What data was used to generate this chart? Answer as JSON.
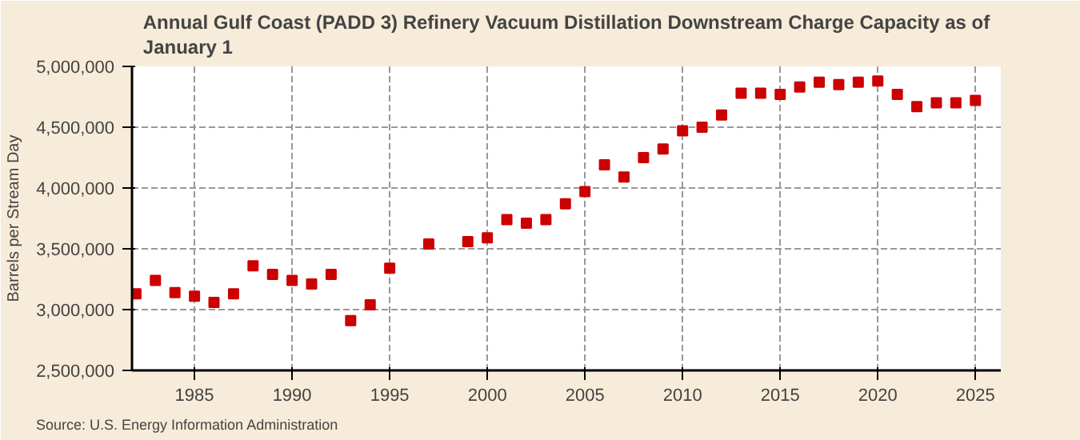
{
  "chart_data": {
    "type": "scatter",
    "title": "Annual Gulf Coast (PADD 3) Refinery Vacuum Distillation Downstream Charge Capacity as of January  1",
    "ylabel": "Barrels per Stream Day",
    "annotations": [
      "Source: U.S. Energy Information Administration"
    ],
    "x": [
      1982,
      1983,
      1984,
      1985,
      1986,
      1987,
      1988,
      1989,
      1990,
      1991,
      1992,
      1993,
      1994,
      1995,
      1997,
      1999,
      2000,
      2001,
      2002,
      2003,
      2004,
      2005,
      2006,
      2007,
      2008,
      2009,
      2010,
      2011,
      2012,
      2013,
      2014,
      2015,
      2016,
      2017,
      2018,
      2019,
      2020,
      2021,
      2022,
      2023,
      2024,
      2025
    ],
    "series": [
      {
        "color": "#cc0000",
        "values": [
          3130000,
          3240000,
          3140000,
          3110000,
          3060000,
          3130000,
          3360000,
          3290000,
          3240000,
          3210000,
          3290000,
          2910000,
          3040000,
          3340000,
          3540000,
          3560000,
          3590000,
          3740000,
          3710000,
          3740000,
          3870000,
          3970000,
          4190000,
          4090000,
          4250000,
          4320000,
          4470000,
          4500000,
          4600000,
          4780000,
          4780000,
          4770000,
          4830000,
          4870000,
          4850000,
          4870000,
          4880000,
          4770000,
          4670000,
          4700000,
          4700000,
          4720000
        ]
      }
    ],
    "xlim": [
      1981.8,
      2026.3
    ],
    "xticks": [
      1985,
      1990,
      1995,
      2000,
      2005,
      2010,
      2015,
      2020,
      2025
    ],
    "ylim": [
      2500000,
      5000000
    ],
    "yticks": [
      {
        "value": 2500000,
        "label": "2,500,000"
      },
      {
        "value": 3000000,
        "label": "3,000,000"
      },
      {
        "value": 3500000,
        "label": "3,500,000"
      },
      {
        "value": 4000000,
        "label": "4,000,000"
      },
      {
        "value": 4500000,
        "label": "4,500,000"
      },
      {
        "value": 5000000,
        "label": "5,000,000"
      }
    ],
    "grid": true,
    "marker": "square"
  }
}
